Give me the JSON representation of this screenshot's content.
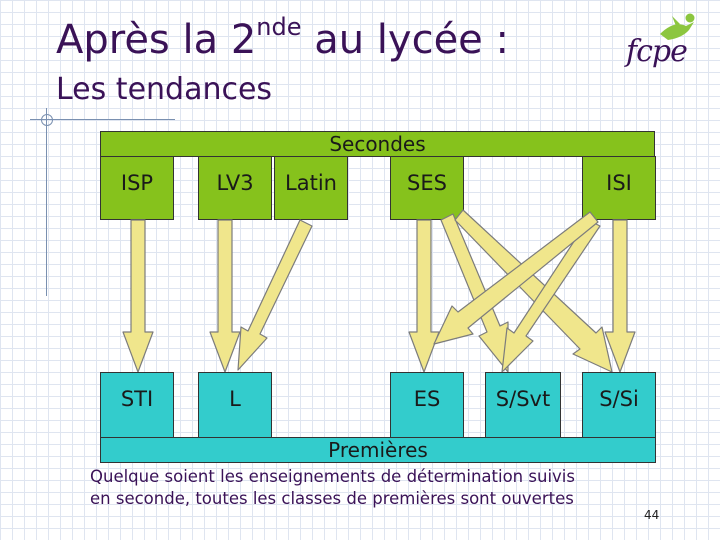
{
  "header": {
    "title_pre": "Après la 2",
    "title_sup": "nde",
    "title_post": " au lycée :",
    "subtitle": "Les tendances",
    "logo_text": "fcpe"
  },
  "secondes": {
    "label": "Secondes",
    "options": [
      "ISP",
      "LV3",
      "Latin",
      "SES",
      "ISI"
    ]
  },
  "premieres": {
    "label": "Premières",
    "series": [
      "STI",
      "L",
      "ES",
      "S/Svt",
      "S/Si"
    ]
  },
  "flows": [
    {
      "from": "ISP",
      "to": "STI"
    },
    {
      "from": "LV3",
      "to": "L"
    },
    {
      "from": "Latin",
      "to": "L"
    },
    {
      "from": "SES",
      "to": "ES"
    },
    {
      "from": "SES",
      "to": "S/Svt"
    },
    {
      "from": "SES",
      "to": "S/Si"
    },
    {
      "from": "ISI",
      "to": "ES"
    },
    {
      "from": "ISI",
      "to": "S/Svt"
    },
    {
      "from": "ISI",
      "to": "S/Si"
    }
  ],
  "note": {
    "line1": "Quelque soient les enseignements de détermination suivis",
    "line2": "en seconde, toutes les classes de premières sont ouvertes"
  },
  "page_number": "44",
  "colors": {
    "title": "#3a1257",
    "secondes": "#86c21c",
    "premieres": "#33cccc",
    "arrow": "#f0e68c",
    "logo_figure": "#8cc63f"
  }
}
